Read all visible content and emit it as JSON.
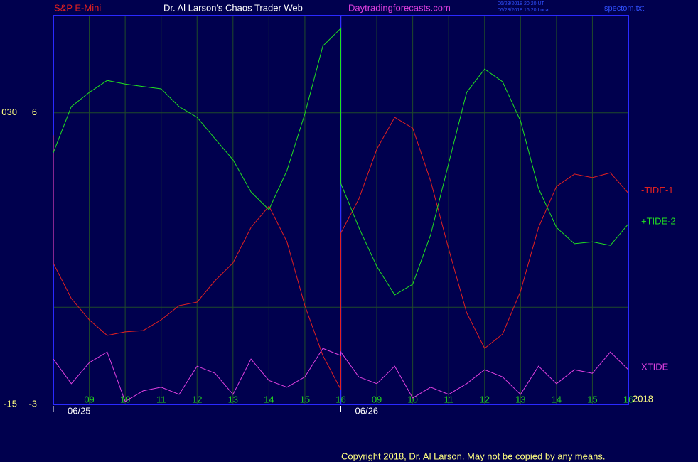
{
  "chart_data": {
    "type": "line",
    "title": "Dr. Al Larson's Chaos Trader Web",
    "instrument": "S&P E-Mini",
    "website": "Daytradingforecasts.com",
    "timestamps": [
      "06/23/2018 20:20 UT",
      "06/23/2018 16:20 Local"
    ],
    "file": "spectom.txt",
    "year": "2018",
    "copyright": "Copyright 2018, Dr. Al Larson. May not be copied by any means.",
    "x": [
      0,
      0,
      0.5,
      1,
      1.5,
      2,
      2.5,
      3,
      3.5,
      4,
      4.5,
      5,
      5.5,
      6,
      6.5,
      7,
      7.5,
      8,
      8,
      8.5,
      9,
      9.5,
      10,
      10.5,
      11,
      11.5,
      12,
      12.5,
      13,
      13.5,
      14,
      14.5,
      15,
      15.5,
      16
    ],
    "xlim": [
      0,
      16
    ],
    "xticks": [
      {
        "value": 1,
        "label": "09"
      },
      {
        "value": 2,
        "label": "10"
      },
      {
        "value": 3,
        "label": "11"
      },
      {
        "value": 4,
        "label": "12"
      },
      {
        "value": 5,
        "label": "13"
      },
      {
        "value": 6,
        "label": "14"
      },
      {
        "value": 7,
        "label": "15"
      },
      {
        "value": 8,
        "label": "16"
      },
      {
        "value": 9,
        "label": "09"
      },
      {
        "value": 10,
        "label": "10"
      },
      {
        "value": 11,
        "label": "11"
      },
      {
        "value": 12,
        "label": "12"
      },
      {
        "value": 13,
        "label": "13"
      },
      {
        "value": 14,
        "label": "14"
      },
      {
        "value": 15,
        "label": "15"
      },
      {
        "value": 16,
        "label": "16"
      }
    ],
    "xdates": [
      {
        "value": 0,
        "label": "06/25"
      },
      {
        "value": 8,
        "label": "06/26"
      }
    ],
    "ylim": [
      -3,
      9
    ],
    "yticks": [
      -3,
      6
    ],
    "ygrid": [
      0,
      3,
      6
    ],
    "y2lim": [
      -15,
      45
    ],
    "y2ticks": [
      -15,
      {
        "value": 30,
        "label": "030"
      }
    ],
    "grid": true,
    "series": [
      {
        "name": "-TIDE-1",
        "color": "#e02020",
        "values": [
          5.31,
          1.36,
          0.27,
          -0.39,
          -0.87,
          -0.76,
          -0.72,
          -0.39,
          0.05,
          0.16,
          0.82,
          1.37,
          2.46,
          3.12,
          2.02,
          0.05,
          -1.49,
          -2.54,
          2.29,
          3.34,
          4.88,
          5.86,
          5.53,
          3.89,
          1.8,
          -0.17,
          -1.27,
          -0.83,
          0.49,
          2.46,
          3.73,
          4.11,
          4.0,
          4.15,
          3.52
        ]
      },
      {
        "name": "+TIDE-2",
        "color": "#20e020",
        "values": [
          4.77,
          4.77,
          6.19,
          6.63,
          7.0,
          6.89,
          6.81,
          6.74,
          6.19,
          5.86,
          5.2,
          4.55,
          3.56,
          3.01,
          4.22,
          5.97,
          8.06,
          8.61,
          3.82,
          2.46,
          1.26,
          0.38,
          0.71,
          2.24,
          4.44,
          6.63,
          7.35,
          6.96,
          5.75,
          3.67,
          2.46,
          1.96,
          2.02,
          1.91,
          2.57
        ]
      },
      {
        "name": "XTIDE",
        "color": "#e040e0",
        "values": [
          -1.6,
          -1.6,
          -2.36,
          -1.71,
          -1.38,
          -2.91,
          -2.58,
          -2.47,
          -2.69,
          -1.82,
          -2.04,
          -2.69,
          -1.6,
          -2.26,
          -2.47,
          -2.15,
          -1.27,
          -1.49,
          -1.38,
          -2.15,
          -2.36,
          -1.82,
          -2.8,
          -2.47,
          -2.69,
          -2.36,
          -1.93,
          -2.15,
          -2.69,
          -1.82,
          -2.36,
          -1.93,
          -2.04,
          -1.38,
          -1.93
        ]
      }
    ]
  }
}
